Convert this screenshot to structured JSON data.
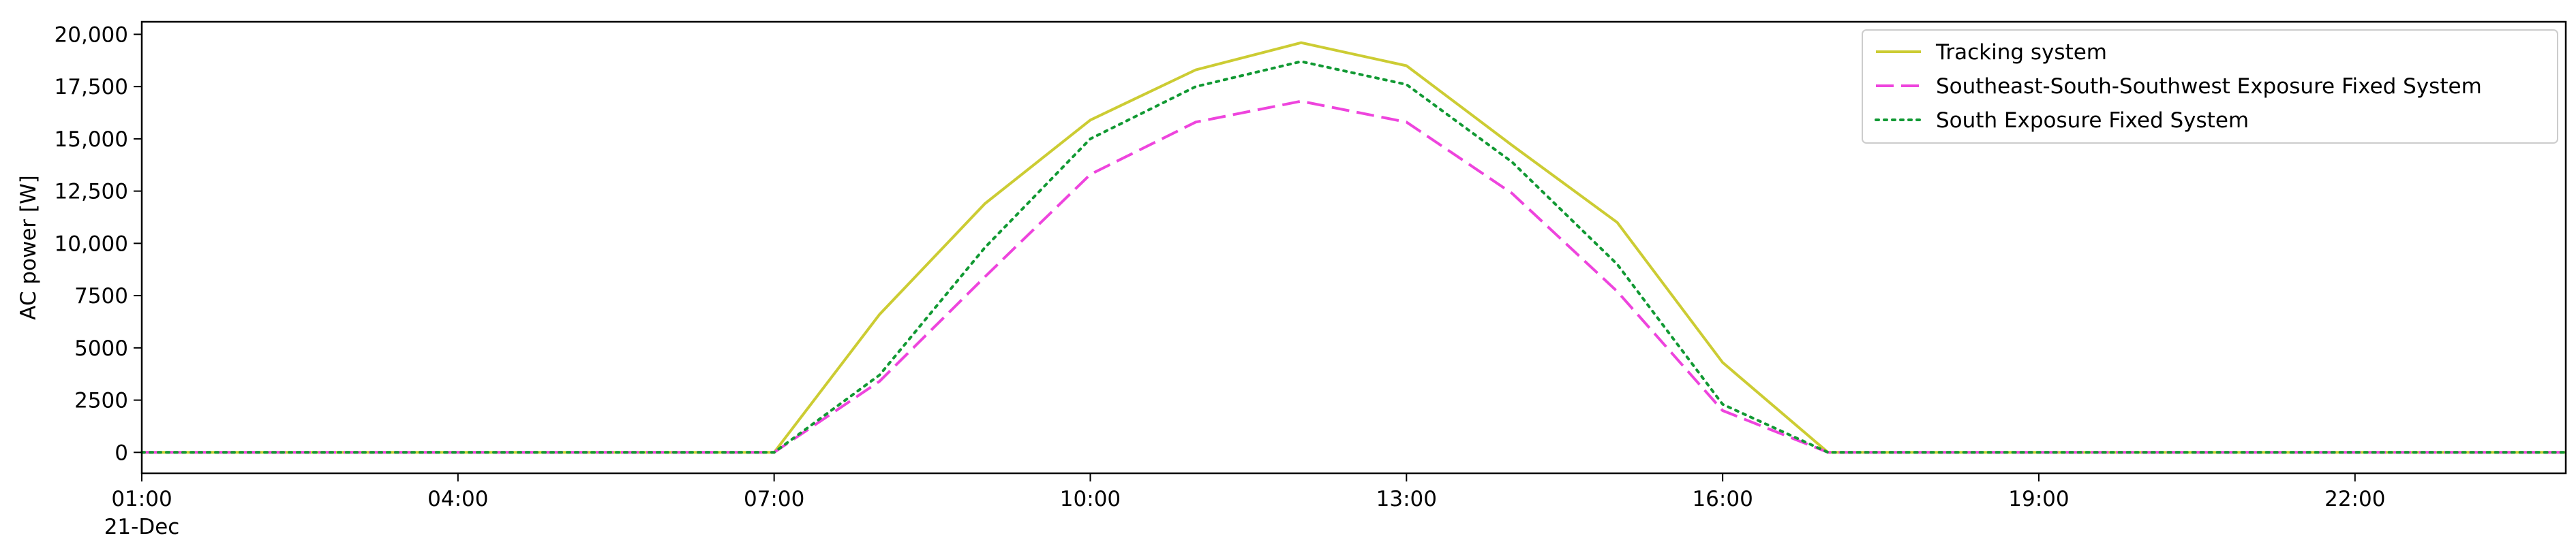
{
  "chart_data": {
    "type": "line",
    "title": "",
    "xlabel": "",
    "ylabel": "AC power [W]",
    "x_ticks": [
      "01:00",
      "04:00",
      "07:00",
      "10:00",
      "13:00",
      "16:00",
      "19:00",
      "22:00"
    ],
    "x_date_label": "21-Dec",
    "x_range": [
      "01:00",
      "24:00"
    ],
    "y_ticks": [
      "0",
      "2500",
      "5000",
      "7500",
      "10,000",
      "12,500",
      "15,000",
      "17,500",
      "20,000"
    ],
    "ylim": [
      -1000,
      20600
    ],
    "grid": false,
    "legend_position": "upper right",
    "x": [
      "01:00",
      "02:00",
      "03:00",
      "04:00",
      "05:00",
      "06:00",
      "07:00",
      "08:00",
      "09:00",
      "10:00",
      "11:00",
      "12:00",
      "13:00",
      "14:00",
      "15:00",
      "16:00",
      "17:00",
      "18:00",
      "19:00",
      "20:00",
      "21:00",
      "22:00",
      "23:00",
      "24:00"
    ],
    "series": [
      {
        "name": "Tracking system",
        "color": "#cccc33",
        "dash": "solid",
        "values": [
          0,
          0,
          0,
          0,
          0,
          0,
          0,
          6600,
          11900,
          15900,
          18300,
          19600,
          18500,
          14700,
          11000,
          4300,
          0,
          0,
          0,
          0,
          0,
          0,
          0,
          0
        ]
      },
      {
        "name": "Southeast-South-Southwest Exposure Fixed System",
        "color": "#ee44dd",
        "dash": "dashed",
        "values": [
          0,
          0,
          0,
          0,
          0,
          0,
          0,
          3400,
          8400,
          13300,
          15800,
          16800,
          15800,
          12400,
          7700,
          2000,
          0,
          0,
          0,
          0,
          0,
          0,
          0,
          0
        ]
      },
      {
        "name": "South Exposure Fixed System",
        "color": "#119933",
        "dash": "dotted",
        "values": [
          0,
          0,
          0,
          0,
          0,
          0,
          0,
          3700,
          9800,
          15000,
          17500,
          18700,
          17600,
          13900,
          9000,
          2300,
          0,
          0,
          0,
          0,
          0,
          0,
          0,
          0
        ]
      }
    ]
  }
}
